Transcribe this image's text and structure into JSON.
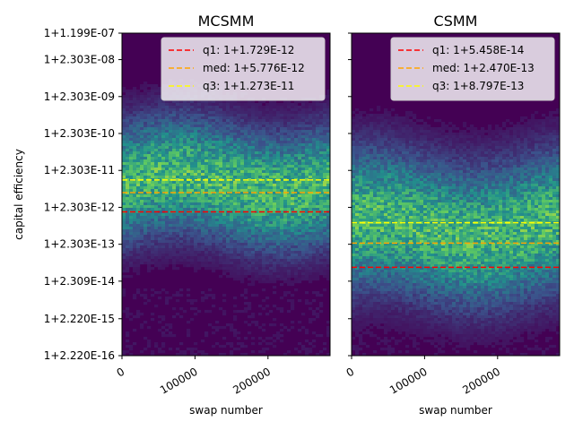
{
  "chart_data": [
    {
      "type": "heatmap",
      "title": "MCSMM",
      "xlabel": "swap number",
      "ylabel": "capital efficiency",
      "xlim": [
        0,
        285000
      ],
      "x_ticks": [
        0,
        100000,
        200000
      ],
      "x_tick_labels": [
        "0",
        "100000",
        "200000"
      ],
      "y_ticks": [
        "1+1.199E-07",
        "1+2.303E-08",
        "1+2.303E-09",
        "1+2.303E-10",
        "1+2.303E-11",
        "1+2.303E-12",
        "1+2.303E-13",
        "1+2.309E-14",
        "1+2.220E-15",
        "1+2.220E-16"
      ],
      "y_log_exponents": [
        -6.921,
        -7.638,
        -8.638,
        -9.638,
        -10.638,
        -11.638,
        -12.638,
        -13.637,
        -14.654,
        -15.654
      ],
      "ylim_log": [
        -15.654,
        -6.921
      ],
      "lines": [
        {
          "label": "q1: 1+1.729E-12",
          "value_log": -11.762,
          "color": "#ff0000"
        },
        {
          "label": "med: 1+5.776E-12",
          "value_log": -11.238,
          "color": "#ffa500"
        },
        {
          "label": "q3: 1+1.273E-11",
          "value_log": -10.895,
          "color": "#ffff00"
        }
      ],
      "density": {
        "center_log": -11.0,
        "spread_log": 1.1,
        "noise_floor_log": -15.0
      },
      "legend_position": "top-right"
    },
    {
      "type": "heatmap",
      "title": "CSMM",
      "xlabel": "swap number",
      "xlim": [
        0,
        285000
      ],
      "x_ticks": [
        0,
        100000,
        200000
      ],
      "x_tick_labels": [
        "0",
        "100000",
        "200000"
      ],
      "y_log_exponents": [
        -6.921,
        -7.638,
        -8.638,
        -9.638,
        -10.638,
        -11.638,
        -12.638,
        -13.637,
        -14.654,
        -15.654
      ],
      "ylim_log": [
        -15.654,
        -6.921
      ],
      "lines": [
        {
          "label": "q1: 1+5.458E-14",
          "value_log": -13.263,
          "color": "#ff0000"
        },
        {
          "label": "med: 1+2.470E-13",
          "value_log": -12.607,
          "color": "#ffa500"
        },
        {
          "label": "q3: 1+8.797E-13",
          "value_log": -12.056,
          "color": "#ffff00"
        }
      ],
      "density": {
        "center_log": -12.2,
        "spread_log": 1.3,
        "noise_floor_log": -15.5
      },
      "legend_position": "top-right"
    }
  ]
}
